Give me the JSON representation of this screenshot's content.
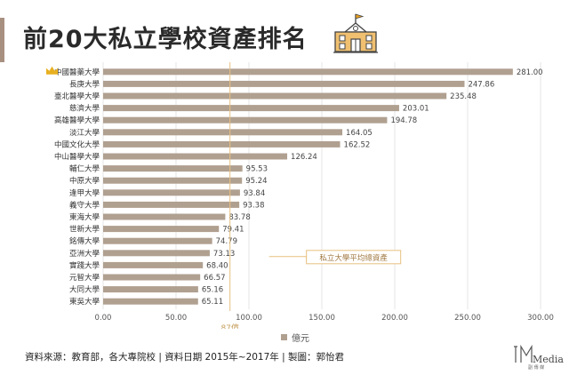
{
  "title": "前20大私立學校資產排名",
  "source": "資料來源：教育部，各大專院校 | 資料日期 2015年~2017年 | 製圖：郭怡君",
  "brand": {
    "name": "Media",
    "sub": "副 傳 媒"
  },
  "colors": {
    "bar": "#b0a090",
    "avg_line": "#e8c080",
    "crown": "#e8b020",
    "grid": "#e6e6e6",
    "accent": "#a89080"
  },
  "chart_data": {
    "type": "bar",
    "orientation": "horizontal",
    "categories": [
      "中國醫藥大學",
      "長庚大學",
      "臺北醫學大學",
      "慈濟大學",
      "高雄醫學大學",
      "淡江大學",
      "中國文化大學",
      "中山醫學大學",
      "輔仁大學",
      "中原大學",
      "逢甲大學",
      "義守大學",
      "東海大學",
      "世新大學",
      "銘傳大學",
      "亞洲大學",
      "實踐大學",
      "元智大學",
      "大同大學",
      "東吳大學"
    ],
    "values": [
      281.0,
      247.86,
      235.48,
      203.01,
      194.78,
      164.05,
      162.52,
      126.24,
      95.53,
      95.24,
      93.84,
      93.38,
      83.78,
      79.41,
      74.79,
      73.13,
      68.4,
      66.57,
      65.16,
      65.11
    ],
    "value_labels": [
      "281.00",
      "247.86",
      "235.48",
      "203.01",
      "194.78",
      "164.05",
      "162.52",
      "126.24",
      "95.53",
      "95.24",
      "93.84",
      "93.38",
      "83.78",
      "79.41",
      "74.79",
      "73.13",
      "68.40",
      "66.57",
      "65.16",
      "65.11"
    ],
    "xlim": [
      0,
      300
    ],
    "xticks": [
      "0.00",
      "50.00",
      "100.00",
      "150.00",
      "200.00",
      "250.00",
      "300.00"
    ],
    "xtick_values": [
      0,
      50,
      100,
      150,
      200,
      250,
      300
    ],
    "legend": [
      "億元"
    ],
    "legend_position": "bottom",
    "grid": true,
    "average_line": {
      "value": 87,
      "label": "87億",
      "annotation": "私立大學平均總資產"
    }
  }
}
